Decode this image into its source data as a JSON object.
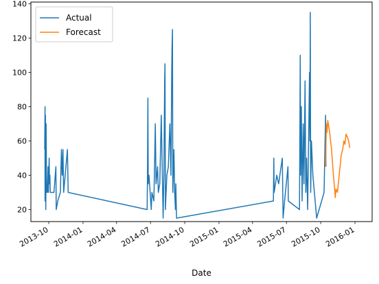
{
  "chart_data": {
    "type": "line",
    "title": "",
    "xlabel": "Date",
    "ylabel": "",
    "xlim": [
      "2013-08-14",
      "2016-02-16"
    ],
    "ylim": [
      13,
      141
    ],
    "x_scale": "date",
    "grid": false,
    "legend": "top-left",
    "x_ticks": [
      "2013-10",
      "2014-01",
      "2014-04",
      "2014-07",
      "2014-10",
      "2015-01",
      "2015-04",
      "2015-07",
      "2015-10",
      "2016-01"
    ],
    "y_ticks": [
      20,
      40,
      60,
      80,
      100,
      120,
      140
    ],
    "series": [
      {
        "name": "Actual",
        "color": "#1f77b4",
        "points": [
          [
            "2013-09-20",
            55
          ],
          [
            "2013-09-21",
            80
          ],
          [
            "2013-09-21",
            25
          ],
          [
            "2013-09-22",
            75
          ],
          [
            "2013-09-23",
            20
          ],
          [
            "2013-09-24",
            70
          ],
          [
            "2013-09-25",
            30
          ],
          [
            "2013-09-27",
            30
          ],
          [
            "2013-09-29",
            45
          ],
          [
            "2013-09-30",
            30
          ],
          [
            "2013-10-02",
            50
          ],
          [
            "2013-10-03",
            35
          ],
          [
            "2013-10-04",
            40
          ],
          [
            "2013-10-05",
            30
          ],
          [
            "2013-10-15",
            30
          ],
          [
            "2013-10-20",
            45
          ],
          [
            "2013-10-21",
            20
          ],
          [
            "2013-10-25",
            25
          ],
          [
            "2013-11-01",
            30
          ],
          [
            "2013-11-04",
            55
          ],
          [
            "2013-11-06",
            40
          ],
          [
            "2013-11-08",
            55
          ],
          [
            "2013-11-10",
            30
          ],
          [
            "2013-11-18",
            50
          ],
          [
            "2013-11-20",
            55
          ],
          [
            "2013-11-22",
            30
          ],
          [
            "2014-06-22",
            20
          ],
          [
            "2014-06-23",
            40
          ],
          [
            "2014-06-24",
            85
          ],
          [
            "2014-06-25",
            35
          ],
          [
            "2014-06-27",
            40
          ],
          [
            "2014-07-03",
            20
          ],
          [
            "2014-07-05",
            30
          ],
          [
            "2014-07-10",
            25
          ],
          [
            "2014-07-12",
            45
          ],
          [
            "2014-07-14",
            70
          ],
          [
            "2014-07-16",
            35
          ],
          [
            "2014-07-20",
            45
          ],
          [
            "2014-07-22",
            30
          ],
          [
            "2014-07-26",
            35
          ],
          [
            "2014-07-30",
            75
          ],
          [
            "2014-08-04",
            15
          ],
          [
            "2014-08-06",
            40
          ],
          [
            "2014-08-08",
            95
          ],
          [
            "2014-08-09",
            105
          ],
          [
            "2014-08-10",
            20
          ],
          [
            "2014-08-14",
            40
          ],
          [
            "2014-08-18",
            45
          ],
          [
            "2014-08-22",
            70
          ],
          [
            "2014-08-25",
            40
          ],
          [
            "2014-08-27",
            100
          ],
          [
            "2014-08-28",
            115
          ],
          [
            "2014-08-29",
            125
          ],
          [
            "2014-08-30",
            30
          ],
          [
            "2014-09-02",
            55
          ],
          [
            "2014-09-04",
            30
          ],
          [
            "2014-09-06",
            20
          ],
          [
            "2014-09-07",
            35
          ],
          [
            "2014-09-09",
            15
          ],
          [
            "2015-05-27",
            25
          ],
          [
            "2015-05-28",
            50
          ],
          [
            "2015-05-29",
            30
          ],
          [
            "2015-06-05",
            40
          ],
          [
            "2015-06-10",
            35
          ],
          [
            "2015-06-20",
            50
          ],
          [
            "2015-06-22",
            15
          ],
          [
            "2015-06-26",
            25
          ],
          [
            "2015-07-05",
            45
          ],
          [
            "2015-07-06",
            25
          ],
          [
            "2015-08-05",
            20
          ],
          [
            "2015-08-07",
            110
          ],
          [
            "2015-08-08",
            40
          ],
          [
            "2015-08-10",
            80
          ],
          [
            "2015-08-12",
            25
          ],
          [
            "2015-08-15",
            70
          ],
          [
            "2015-08-17",
            35
          ],
          [
            "2015-08-20",
            95
          ],
          [
            "2015-08-22",
            30
          ],
          [
            "2015-08-24",
            50
          ],
          [
            "2015-08-27",
            20
          ],
          [
            "2015-09-01",
            100
          ],
          [
            "2015-09-02",
            60
          ],
          [
            "2015-09-03",
            135
          ],
          [
            "2015-09-04",
            30
          ],
          [
            "2015-09-06",
            60
          ],
          [
            "2015-09-10",
            40
          ],
          [
            "2015-09-20",
            15
          ],
          [
            "2015-10-10",
            30
          ],
          [
            "2015-10-14",
            75
          ],
          [
            "2015-10-15",
            45
          ]
        ]
      },
      {
        "name": "Forecast",
        "color": "#ff7f0e",
        "points": [
          [
            "2015-10-14",
            45
          ],
          [
            "2015-10-16",
            70
          ],
          [
            "2015-10-18",
            65
          ],
          [
            "2015-10-20",
            72
          ],
          [
            "2015-10-25",
            65
          ],
          [
            "2015-10-30",
            55
          ],
          [
            "2015-11-04",
            40
          ],
          [
            "2015-11-07",
            33
          ],
          [
            "2015-11-09",
            27
          ],
          [
            "2015-11-11",
            32
          ],
          [
            "2015-11-15",
            30
          ],
          [
            "2015-11-18",
            37
          ],
          [
            "2015-11-22",
            45
          ],
          [
            "2015-11-25",
            52
          ],
          [
            "2015-11-29",
            55
          ],
          [
            "2015-12-02",
            60
          ],
          [
            "2015-12-05",
            58
          ],
          [
            "2015-12-08",
            64
          ],
          [
            "2015-12-12",
            62
          ],
          [
            "2015-12-15",
            60
          ],
          [
            "2015-12-18",
            56
          ]
        ]
      }
    ]
  }
}
